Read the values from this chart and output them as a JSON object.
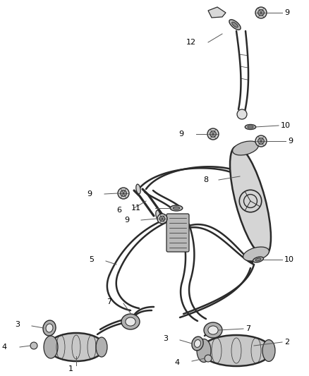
{
  "background_color": "#ffffff",
  "fig_width": 4.38,
  "fig_height": 5.33,
  "dpi": 100,
  "line_color": "#2a2a2a",
  "label_color": "#000000",
  "label_fs": 8.0,
  "lw_pipe": 1.8,
  "lw_thin": 0.9,
  "lw_detail": 0.6
}
